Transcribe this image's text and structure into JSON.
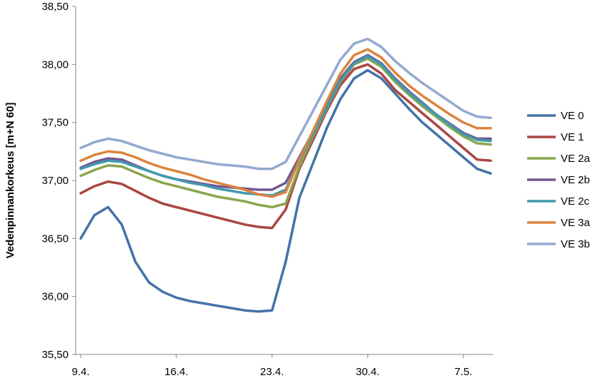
{
  "chart_data": {
    "type": "line",
    "ylabel": "Vedenpinnankorkeus [m+N 60]",
    "xlabel": "",
    "ylim": [
      35.5,
      38.5
    ],
    "yticks": [
      "35,50",
      "36,00",
      "36,50",
      "37,00",
      "37,50",
      "38,00",
      "38,50"
    ],
    "xticks": [
      "9.4.",
      "16.4.",
      "23.4.",
      "30.4.",
      "7.5."
    ],
    "grid": false,
    "legend": "right",
    "x": [
      "9.4.",
      "10.4.",
      "11.4.",
      "12.4.",
      "13.4.",
      "14.4.",
      "15.4.",
      "16.4.",
      "17.4.",
      "18.4.",
      "19.4.",
      "20.4.",
      "21.4.",
      "22.4.",
      "23.4.",
      "24.4.",
      "25.4.",
      "26.4.",
      "27.4.",
      "28.4.",
      "29.4.",
      "30.4.",
      "1.5.",
      "2.5.",
      "3.5.",
      "4.5.",
      "5.5.",
      "6.5.",
      "7.5.",
      "8.5.",
      "9.5."
    ],
    "series": [
      {
        "name": "VE 0",
        "color": "#4572A7",
        "values": [
          36.5,
          36.7,
          36.77,
          36.62,
          36.3,
          36.12,
          36.04,
          35.99,
          35.96,
          35.94,
          35.92,
          35.9,
          35.88,
          35.87,
          35.88,
          36.3,
          36.85,
          37.15,
          37.45,
          37.7,
          37.88,
          37.95,
          37.88,
          37.75,
          37.62,
          37.5,
          37.4,
          37.3,
          37.2,
          37.1,
          37.06
        ]
      },
      {
        "name": "VE 1",
        "color": "#AA4643",
        "values": [
          36.89,
          36.95,
          36.99,
          36.97,
          36.91,
          36.85,
          36.8,
          36.77,
          36.74,
          36.71,
          36.68,
          36.65,
          36.62,
          36.6,
          36.59,
          36.75,
          37.1,
          37.35,
          37.6,
          37.82,
          37.96,
          38.0,
          37.92,
          37.78,
          37.68,
          37.58,
          37.48,
          37.38,
          37.28,
          37.18,
          37.17
        ]
      },
      {
        "name": "VE 2a",
        "color": "#89A54E",
        "values": [
          37.04,
          37.09,
          37.13,
          37.12,
          37.07,
          37.02,
          36.98,
          36.95,
          36.92,
          36.89,
          36.86,
          36.84,
          36.82,
          36.79,
          36.77,
          36.8,
          37.12,
          37.38,
          37.62,
          37.85,
          38.0,
          38.05,
          37.98,
          37.85,
          37.74,
          37.64,
          37.55,
          37.46,
          37.38,
          37.32,
          37.31
        ]
      },
      {
        "name": "VE 2b",
        "color": "#71588F",
        "values": [
          37.11,
          37.16,
          37.19,
          37.18,
          37.13,
          37.08,
          37.04,
          37.01,
          36.99,
          36.97,
          36.95,
          36.94,
          36.93,
          36.92,
          36.92,
          36.98,
          37.2,
          37.42,
          37.65,
          37.88,
          38.02,
          38.08,
          38.01,
          37.88,
          37.77,
          37.67,
          37.57,
          37.49,
          37.41,
          37.36,
          37.36
        ]
      },
      {
        "name": "VE 2c",
        "color": "#4198AF",
        "values": [
          37.1,
          37.14,
          37.17,
          37.16,
          37.12,
          37.08,
          37.04,
          37.01,
          36.98,
          36.96,
          36.93,
          36.91,
          36.89,
          36.88,
          36.87,
          36.92,
          37.17,
          37.4,
          37.63,
          37.86,
          38.01,
          38.07,
          38.0,
          37.87,
          37.76,
          37.66,
          37.57,
          37.48,
          37.4,
          37.35,
          37.34
        ]
      },
      {
        "name": "VE 3a",
        "color": "#DB843D",
        "values": [
          37.17,
          37.22,
          37.25,
          37.24,
          37.2,
          37.15,
          37.11,
          37.08,
          37.05,
          37.01,
          36.98,
          36.95,
          36.92,
          36.88,
          36.86,
          36.9,
          37.18,
          37.43,
          37.68,
          37.92,
          38.08,
          38.13,
          38.06,
          37.93,
          37.82,
          37.73,
          37.65,
          37.57,
          37.5,
          37.45,
          37.45
        ]
      },
      {
        "name": "VE 3b",
        "color": "#93A9CF",
        "values": [
          37.28,
          37.33,
          37.36,
          37.34,
          37.3,
          37.26,
          37.23,
          37.2,
          37.18,
          37.16,
          37.14,
          37.13,
          37.12,
          37.1,
          37.1,
          37.16,
          37.38,
          37.6,
          37.82,
          38.04,
          38.18,
          38.22,
          38.15,
          38.03,
          37.93,
          37.84,
          37.76,
          37.68,
          37.6,
          37.55,
          37.54
        ]
      }
    ]
  }
}
